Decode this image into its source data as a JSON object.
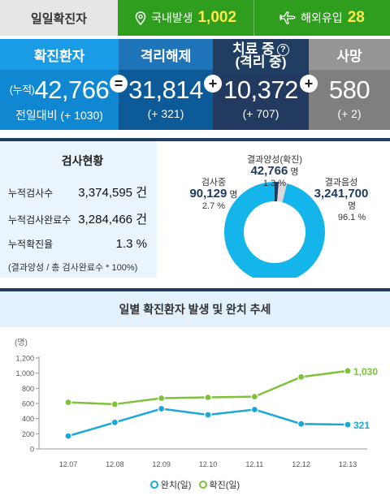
{
  "top": {
    "label": "일일확진자",
    "domestic_label": "국내발생",
    "domestic_value": "1,002",
    "overseas_label": "해외유입",
    "overseas_value": "28"
  },
  "summary": {
    "confirmed": {
      "title": "확진환자",
      "prefix": "(누적)",
      "value": "42,766",
      "sub": "전일대비 (+ 1030)"
    },
    "released": {
      "title": "격리해제",
      "value": "31,814",
      "sub": "(+ 321)"
    },
    "treatment": {
      "title": "치료 중",
      "title2": "(격리 중)",
      "qmark": "?",
      "value": "10,372",
      "sub": "(+ 707)"
    },
    "deaths": {
      "title": "사망",
      "value": "580",
      "sub": "(+ 2)"
    },
    "op_eq": "=",
    "op_plus": "+"
  },
  "test": {
    "title": "검사현황",
    "rows": [
      {
        "label": "누적검사수",
        "value": "3,374,595 건"
      },
      {
        "label": "누적검사완료수",
        "value": "3,284,466 건"
      },
      {
        "label": "누적확진율",
        "value": "1.3 %"
      }
    ],
    "note": "(결과양성 / 총 검사완료수 * 100%)",
    "pie": {
      "positive": {
        "label": "결과양성(확진)",
        "value": "42,766",
        "unit": "명",
        "pct": "1.3 %",
        "fraction": 0.013
      },
      "testing": {
        "label": "검사중",
        "value": "90,129",
        "unit": "명",
        "pct": "2.7 %",
        "fraction": 0.027
      },
      "negative": {
        "label": "결과음성",
        "value": "3,241,700",
        "unit": "명",
        "pct": "96.1 %",
        "fraction": 0.961
      },
      "colors": {
        "positive": "#1e3a5f",
        "testing": "#d9d9d9",
        "negative": "#14b5ea"
      }
    }
  },
  "chart_title": "일별 확진환자 발생 및 완치 추세",
  "legend": {
    "recovered": "완치(일)",
    "confirmed": "확진(일)"
  },
  "colors": {
    "recovered": "#1aa8d8",
    "confirmed": "#7dc23a"
  },
  "chart_data": {
    "type": "line",
    "ylabel": "(명)",
    "ylim": [
      0,
      1200
    ],
    "yticks": [
      "0",
      "200",
      "400",
      "600",
      "800",
      "1,000",
      "1,200"
    ],
    "categories": [
      "12.07",
      "12.08",
      "12.09",
      "12.10",
      "12.11",
      "12.12",
      "12.13"
    ],
    "series": [
      {
        "name": "완치(일)",
        "values": [
          170,
          350,
          530,
          450,
          520,
          330,
          321
        ],
        "end_label": "321"
      },
      {
        "name": "확진(일)",
        "values": [
          615,
          590,
          670,
          680,
          690,
          950,
          1030
        ],
        "end_label": "1,030"
      }
    ]
  }
}
